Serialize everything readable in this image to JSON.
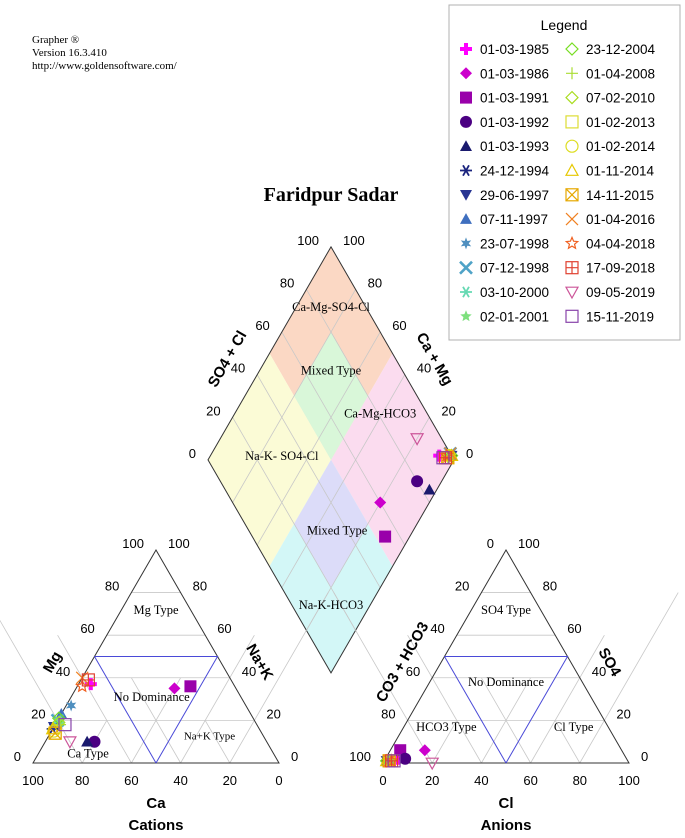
{
  "app_credit": {
    "line1": "Grapher ®",
    "line2": "Version 16.3.410",
    "line3": "http://www.goldensoftware.com/"
  },
  "chart_data": {
    "type": "piper",
    "title": "Faridpur Sadar",
    "cation_triangle": {
      "label": "Cations",
      "bottom_axis": "Ca",
      "left_axis": "Mg",
      "right_axis": "Na+K",
      "bottom_ticks": [
        "100",
        "80",
        "60",
        "40",
        "20",
        "0"
      ],
      "left_ticks": [
        "0",
        "20",
        "40",
        "60",
        "80",
        "100"
      ],
      "right_ticks": [
        "0",
        "20",
        "40",
        "60",
        "80",
        "100"
      ],
      "zones": [
        "Mg Type",
        "No Dominance",
        "Na+K Type",
        "Ca Type"
      ]
    },
    "anion_triangle": {
      "label": "Anions",
      "bottom_axis": "Cl",
      "left_axis": "CO3 + HCO3",
      "right_axis": "SO4",
      "bottom_ticks": [
        "0",
        "20",
        "40",
        "60",
        "80",
        "100"
      ],
      "left_ticks": [
        "0",
        "20",
        "40",
        "60",
        "80",
        "100"
      ],
      "right_ticks": [
        "0",
        "20",
        "40",
        "60",
        "80",
        "100"
      ],
      "zones": [
        "SO4 Type",
        "No Dominance",
        "HCO3 Type",
        "Cl Type"
      ]
    },
    "diamond": {
      "left_axis": "SO4 + Cl",
      "right_axis": "Ca + Mg",
      "left_ticks": [
        "0",
        "20",
        "40",
        "60",
        "80",
        "100"
      ],
      "right_ticks": [
        "0",
        "20",
        "40",
        "60",
        "80",
        "100"
      ],
      "zones": [
        "Ca-Mg-SO4-Cl",
        "Mixed Type",
        "Ca-Mg-HCO3",
        "Na-K- SO4-Cl",
        "Mixed Type",
        "Na-K-HCO3"
      ],
      "zone_colors": {
        "top": "#fbd8c4",
        "upper_mixed": "#d9f7d9",
        "left": "#fbdcef",
        "right": "#fbfbd6",
        "lower_mixed": "#dcdcf9",
        "bottom": "#d3f7f7"
      }
    },
    "legend": {
      "title": "Legend",
      "items": [
        {
          "label": "01-03-1985",
          "marker": "plus-filled",
          "color": "#ff00ff"
        },
        {
          "label": "01-03-1986",
          "marker": "diamond-filled",
          "color": "#cc00cc"
        },
        {
          "label": "01-03-1991",
          "marker": "square-filled",
          "color": "#9900aa"
        },
        {
          "label": "01-03-1992",
          "marker": "circle-filled",
          "color": "#4b0082"
        },
        {
          "label": "01-03-1993",
          "marker": "triangle-filled",
          "color": "#1a1a6e"
        },
        {
          "label": "24-12-1994",
          "marker": "asterisk",
          "color": "#1a237e"
        },
        {
          "label": "29-06-1997",
          "marker": "triangle-down-filled",
          "color": "#283593"
        },
        {
          "label": "07-11-1997",
          "marker": "triangle-filled",
          "color": "#3f6fbf"
        },
        {
          "label": "23-07-1998",
          "marker": "star6-filled",
          "color": "#4f8fbf"
        },
        {
          "label": "07-12-1998",
          "marker": "x-thick",
          "color": "#4fa3c7"
        },
        {
          "label": "03-10-2000",
          "marker": "asterisk",
          "color": "#66d9b3"
        },
        {
          "label": "02-01-2001",
          "marker": "star-filled",
          "color": "#7ee07e"
        },
        {
          "label": "23-12-2004",
          "marker": "diamond-open",
          "color": "#77dd22"
        },
        {
          "label": "01-04-2008",
          "marker": "plus-thin",
          "color": "#aadd33"
        },
        {
          "label": "07-02-2010",
          "marker": "diamond-open",
          "color": "#aadd22"
        },
        {
          "label": "01-02-2013",
          "marker": "square-open",
          "color": "#dddd33"
        },
        {
          "label": "01-02-2014",
          "marker": "circle-open",
          "color": "#dddd22"
        },
        {
          "label": "01-11-2014",
          "marker": "triangle-open",
          "color": "#e6c800"
        },
        {
          "label": "14-11-2015",
          "marker": "square-x",
          "color": "#e6a800"
        },
        {
          "label": "01-04-2016",
          "marker": "x-thin",
          "color": "#f08020"
        },
        {
          "label": "04-04-2018",
          "marker": "star-open",
          "color": "#f06020"
        },
        {
          "label": "17-09-2018",
          "marker": "square-plus",
          "color": "#e04030"
        },
        {
          "label": "09-05-2019",
          "marker": "triangle-down-open",
          "color": "#cc5599"
        },
        {
          "label": "15-11-2019",
          "marker": "square-open",
          "color": "#8844aa"
        }
      ]
    },
    "samples": [
      {
        "date": "01-03-1985",
        "ca": 58,
        "mg": 37,
        "nak": 5,
        "hco3": 93,
        "cl": 5,
        "so4": 2
      },
      {
        "date": "01-03-1986",
        "ca": 25,
        "mg": 35,
        "nak": 40,
        "hco3": 80,
        "cl": 14,
        "so4": 6
      },
      {
        "date": "01-03-1991",
        "ca": 18,
        "mg": 36,
        "nak": 46,
        "hco3": 90,
        "cl": 4,
        "so4": 6
      },
      {
        "date": "01-03-1992",
        "ca": 70,
        "mg": 10,
        "nak": 20,
        "hco3": 90,
        "cl": 8,
        "so4": 2
      },
      {
        "date": "01-03-1993",
        "ca": 73,
        "mg": 10,
        "nak": 17,
        "hco3": 97,
        "cl": 2,
        "so4": 1
      },
      {
        "date": "24-12-1994",
        "ca": 84,
        "mg": 16,
        "nak": 0,
        "hco3": 98,
        "cl": 1,
        "so4": 1
      },
      {
        "date": "29-06-1997",
        "ca": 83,
        "mg": 17,
        "nak": 0,
        "hco3": 98,
        "cl": 1,
        "so4": 1
      },
      {
        "date": "07-11-1997",
        "ca": 77,
        "mg": 23,
        "nak": 0,
        "hco3": 98,
        "cl": 1,
        "so4": 1
      },
      {
        "date": "23-07-1998",
        "ca": 71,
        "mg": 27,
        "nak": 2,
        "hco3": 97,
        "cl": 2,
        "so4": 1
      },
      {
        "date": "07-12-1998",
        "ca": 80,
        "mg": 20,
        "nak": 0,
        "hco3": 97,
        "cl": 2,
        "so4": 1
      },
      {
        "date": "03-10-2000",
        "ca": 80,
        "mg": 19,
        "nak": 1,
        "hco3": 97,
        "cl": 2,
        "so4": 1
      },
      {
        "date": "02-01-2001",
        "ca": 79,
        "mg": 20,
        "nak": 1,
        "hco3": 97,
        "cl": 2,
        "so4": 1
      },
      {
        "date": "23-12-2004",
        "ca": 79,
        "mg": 21,
        "nak": 0,
        "hco3": 98,
        "cl": 1,
        "so4": 1
      },
      {
        "date": "01-04-2008",
        "ca": 80,
        "mg": 18,
        "nak": 2,
        "hco3": 97,
        "cl": 2,
        "so4": 1
      },
      {
        "date": "07-02-2010",
        "ca": 80,
        "mg": 19,
        "nak": 1,
        "hco3": 97,
        "cl": 2,
        "so4": 1
      },
      {
        "date": "01-02-2013",
        "ca": 84,
        "mg": 14,
        "nak": 2,
        "hco3": 97,
        "cl": 2,
        "so4": 1
      },
      {
        "date": "01-02-2014",
        "ca": 84,
        "mg": 15,
        "nak": 1,
        "hco3": 97,
        "cl": 2,
        "so4": 1
      },
      {
        "date": "01-11-2014",
        "ca": 84,
        "mg": 16,
        "nak": 0,
        "hco3": 98,
        "cl": 1,
        "so4": 1
      },
      {
        "date": "14-11-2015",
        "ca": 84,
        "mg": 14,
        "nak": 2,
        "hco3": 97,
        "cl": 2,
        "so4": 1
      },
      {
        "date": "01-04-2016",
        "ca": 60,
        "mg": 40,
        "nak": 0,
        "hco3": 97,
        "cl": 2,
        "so4": 1
      },
      {
        "date": "04-04-2018",
        "ca": 62,
        "mg": 36,
        "nak": 2,
        "hco3": 96,
        "cl": 3,
        "so4": 1
      },
      {
        "date": "17-09-2018",
        "ca": 58,
        "mg": 39,
        "nak": 3,
        "hco3": 96,
        "cl": 3,
        "so4": 1
      },
      {
        "date": "09-05-2019",
        "ca": 80,
        "mg": 10,
        "nak": 10,
        "hco3": 80,
        "cl": 20,
        "so4": 0
      },
      {
        "date": "15-11-2019",
        "ca": 78,
        "mg": 18,
        "nak": 4,
        "hco3": 95,
        "cl": 4,
        "so4": 1
      }
    ]
  }
}
